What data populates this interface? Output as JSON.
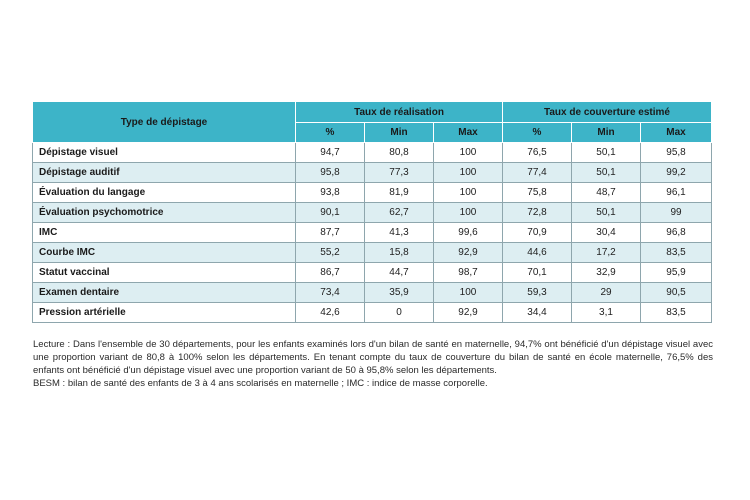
{
  "table": {
    "col_type": "Type de dépistage",
    "group1": "Taux de réalisation",
    "group2": "Taux de couverture estimé",
    "sub": [
      "%",
      "Min",
      "Max",
      "%",
      "Min",
      "Max"
    ],
    "rows": [
      {
        "label": "Dépistage visuel",
        "v": [
          "94,7",
          "80,8",
          "100",
          "76,5",
          "50,1",
          "95,8"
        ]
      },
      {
        "label": "Dépistage auditif",
        "v": [
          "95,8",
          "77,3",
          "100",
          "77,4",
          "50,1",
          "99,2"
        ]
      },
      {
        "label": "Évaluation du langage",
        "v": [
          "93,8",
          "81,9",
          "100",
          "75,8",
          "48,7",
          "96,1"
        ]
      },
      {
        "label": "Évaluation psychomotrice",
        "v": [
          "90,1",
          "62,7",
          "100",
          "72,8",
          "50,1",
          "99"
        ]
      },
      {
        "label": "IMC",
        "v": [
          "87,7",
          "41,3",
          "99,6",
          "70,9",
          "30,4",
          "96,8"
        ]
      },
      {
        "label": "Courbe IMC",
        "v": [
          "55,2",
          "15,8",
          "92,9",
          "44,6",
          "17,2",
          "83,5"
        ]
      },
      {
        "label": "Statut vaccinal",
        "v": [
          "86,7",
          "44,7",
          "98,7",
          "70,1",
          "32,9",
          "95,9"
        ]
      },
      {
        "label": "Examen dentaire",
        "v": [
          "73,4",
          "35,9",
          "100",
          "59,3",
          "29",
          "90,5"
        ]
      },
      {
        "label": "Pression artérielle",
        "v": [
          "42,6",
          "0",
          "92,9",
          "34,4",
          "3,1",
          "83,5"
        ]
      }
    ]
  },
  "notes": {
    "lecture": "Lecture : Dans l'ensemble de 30 départements, pour les enfants examinés lors d'un bilan de santé en maternelle, 94,7% ont bénéficié d'un dépistage visuel avec une proportion variant de 80,8 à 100% selon les départements. En tenant compte du taux de couverture du bilan de santé en école maternelle, 76,5% des enfants ont bénéficié d'un dépistage visuel avec une proportion variant de 50 à 95,8% selon les départements.",
    "besm": "BESM : bilan de santé des enfants de 3 à 4 ans scolarisés en maternelle ; IMC : indice de masse corporelle."
  },
  "colors": {
    "header": "#3db4c8",
    "row_alt": "#ddeef2",
    "border": "#8ea6ad"
  }
}
